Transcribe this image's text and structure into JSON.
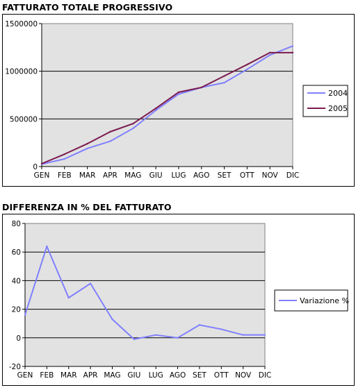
{
  "colors": {
    "series_2004": "#8080ff",
    "series_2005": "#7a1a4f",
    "plot_bg": "#e2e2e2",
    "grid": "#000000"
  },
  "chart_data": [
    {
      "type": "line",
      "title": "FATTURATO TOTALE PROGRESSIVO",
      "categories": [
        "GEN",
        "FEB",
        "MAR",
        "APR",
        "MAG",
        "GIU",
        "LUG",
        "AGO",
        "SET",
        "OTT",
        "NOV",
        "DIC"
      ],
      "ylim": [
        0,
        1500000
      ],
      "yticks": [
        "0",
        "500000",
        "1000000",
        "1500000"
      ],
      "grid": true,
      "legend": "right",
      "series": [
        {
          "name": "2004",
          "values": [
            25000,
            80000,
            190000,
            265000,
            400000,
            590000,
            760000,
            830000,
            880000,
            1020000,
            1170000,
            1265000
          ]
        },
        {
          "name": "2005",
          "values": [
            30000,
            130000,
            240000,
            365000,
            450000,
            610000,
            780000,
            830000,
            950000,
            1070000,
            1195000,
            1195000
          ]
        }
      ]
    },
    {
      "type": "line",
      "title": "DIFFERENZA IN % DEL FATTURATO",
      "categories": [
        "GEN",
        "FEB",
        "MAR",
        "APR",
        "MAG",
        "GIU",
        "LUG",
        "AGO",
        "SET",
        "OTT",
        "NOV",
        "DIC"
      ],
      "ylim": [
        -20,
        80
      ],
      "yticks": [
        "-20",
        "0",
        "20",
        "40",
        "60",
        "80"
      ],
      "grid": true,
      "legend": "right",
      "series": [
        {
          "name": "Variazione %",
          "values": [
            16,
            64,
            28,
            38,
            13,
            -1,
            2,
            0,
            9,
            6,
            2,
            2
          ]
        }
      ]
    }
  ]
}
